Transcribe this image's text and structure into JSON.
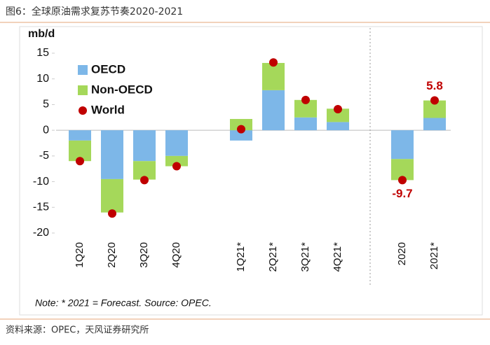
{
  "title": "图6：全球原油需求复苏节奏2020-2021",
  "source": "资料来源：OPEC，天风证券研究所",
  "chart_data": {
    "type": "stacked-bar-dot",
    "y_label": "mb/d",
    "note": "Note: * 2021 = Forecast. Source: OPEC.",
    "categories": [
      "1Q20",
      "2Q20",
      "3Q20",
      "4Q20",
      null,
      "1Q21*",
      "2Q21*",
      "3Q21*",
      "4Q21*",
      null,
      "2020",
      "2021*"
    ],
    "series": [
      {
        "name": "OECD",
        "color": "#7db7e8",
        "kind": "bar",
        "values": [
          -2.0,
          -9.5,
          -6.0,
          -5.0,
          null,
          -2.0,
          7.8,
          2.5,
          1.6,
          null,
          -5.6,
          2.4
        ]
      },
      {
        "name": "Non-OECD",
        "color": "#a5d85a",
        "kind": "bar",
        "values": [
          -4.0,
          -6.5,
          -3.6,
          -2.0,
          null,
          2.2,
          5.3,
          3.4,
          2.6,
          null,
          -4.1,
          3.4
        ]
      },
      {
        "name": "World",
        "color": "#c00000",
        "kind": "dot",
        "values": [
          -6.0,
          -16.2,
          -9.7,
          -7.0,
          null,
          0.2,
          13.2,
          5.9,
          4.1,
          null,
          -9.7,
          5.8
        ],
        "value_labels": [
          null,
          null,
          null,
          null,
          null,
          null,
          null,
          null,
          null,
          null,
          "-9.7",
          "5.8"
        ]
      }
    ],
    "ylim": [
      -20,
      15
    ],
    "yticks": [
      -20,
      -15,
      -10,
      -5,
      0,
      5,
      10,
      15
    ],
    "legend": "top-left"
  }
}
